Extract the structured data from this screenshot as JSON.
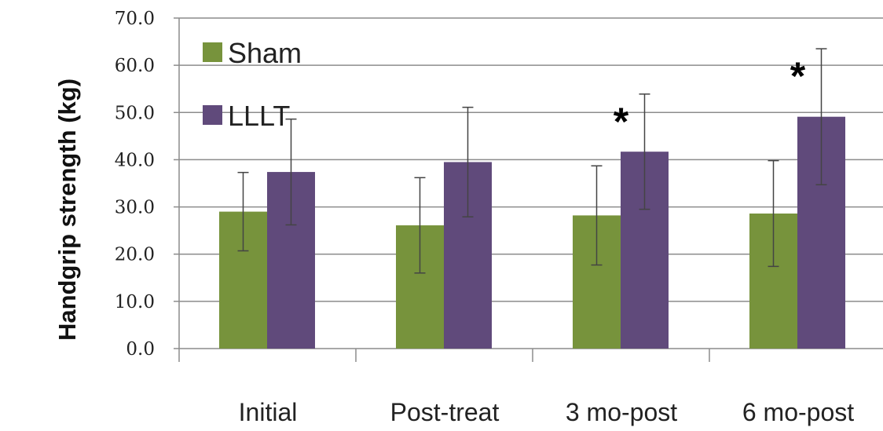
{
  "chart_data": {
    "type": "bar",
    "ylabel": "Handgrip strength (kg)",
    "xlabel": "",
    "ylim": [
      0,
      70
    ],
    "yticks": [
      "0.0",
      "10.0",
      "20.0",
      "30.0",
      "40.0",
      "50.0",
      "60.0",
      "70.0"
    ],
    "grid": true,
    "legend_position": "top-left",
    "categories": [
      "Initial",
      "Post-treat",
      "3 mo-post",
      "6 mo-post"
    ],
    "series": [
      {
        "name": "Sham",
        "color": "#77933c",
        "values": [
          29.0,
          26.1,
          28.2,
          28.6
        ],
        "error": [
          8.3,
          10.1,
          10.5,
          11.2
        ]
      },
      {
        "name": "LLLT",
        "color": "#604a7b",
        "values": [
          37.4,
          39.5,
          41.7,
          49.1
        ],
        "error": [
          11.2,
          11.6,
          12.2,
          14.4
        ]
      }
    ],
    "annotations": [
      {
        "text": "*",
        "category": "3 mo-post",
        "series": "LLLT"
      },
      {
        "text": "*",
        "category": "6 mo-post",
        "series": "LLLT"
      }
    ]
  }
}
